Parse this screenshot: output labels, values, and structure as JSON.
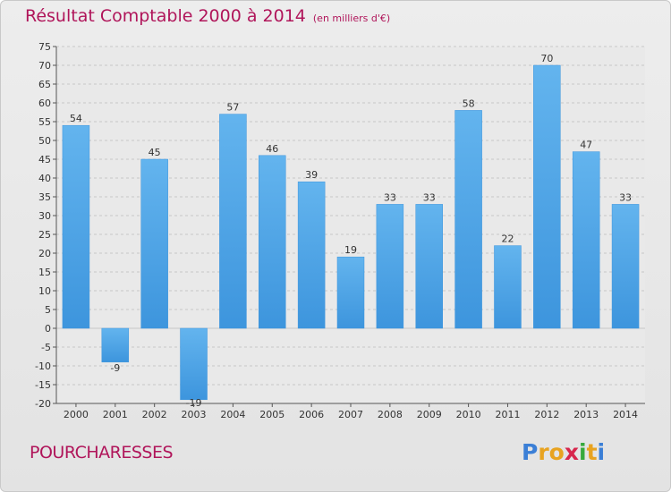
{
  "title": "Résultat Comptable 2000 à 2014",
  "unit": "(en milliers d'€)",
  "commune": "POURCHARESSES",
  "logo": {
    "letters": [
      "P",
      "r",
      "o",
      "x",
      "i",
      "t",
      "i"
    ],
    "colors": [
      "#3b7fd6",
      "#e8a320",
      "#e8a320",
      "#d7264c",
      "#37a93c",
      "#e8a320",
      "#3b7fd6"
    ]
  },
  "colors": {
    "bar": "#3d95dd",
    "bar_light": "#63b4ee",
    "grid": "#c8c8c8",
    "title": "#b0155a"
  },
  "chart_data": {
    "type": "bar",
    "title": "Résultat Comptable 2000 à 2014",
    "ylabel": "en milliers d'€",
    "xlabel": "",
    "categories": [
      "2000",
      "2001",
      "2002",
      "2003",
      "2004",
      "2005",
      "2006",
      "2007",
      "2008",
      "2009",
      "2010",
      "2011",
      "2012",
      "2013",
      "2014"
    ],
    "values": [
      54,
      -9,
      45,
      -19,
      57,
      46,
      39,
      19,
      33,
      33,
      58,
      22,
      70,
      47,
      33
    ],
    "value_labels": [
      "54",
      "-9",
      "45",
      "-19",
      "57",
      "46",
      "39",
      "19",
      "33",
      "33",
      "58",
      "22",
      "70",
      "47",
      "33"
    ],
    "ylim": [
      -20,
      75
    ],
    "yticks": [
      -20,
      -15,
      -10,
      -5,
      0,
      5,
      10,
      15,
      20,
      25,
      30,
      35,
      40,
      45,
      50,
      55,
      60,
      65,
      70,
      75
    ],
    "ytick_labels": [
      "-20",
      "-15",
      "-10",
      "-5",
      "0",
      "5",
      "10",
      "15",
      "20",
      "25",
      "30",
      "35",
      "40",
      "45",
      "50",
      "55",
      "60",
      "65",
      "70",
      "75"
    ],
    "grid": true
  }
}
